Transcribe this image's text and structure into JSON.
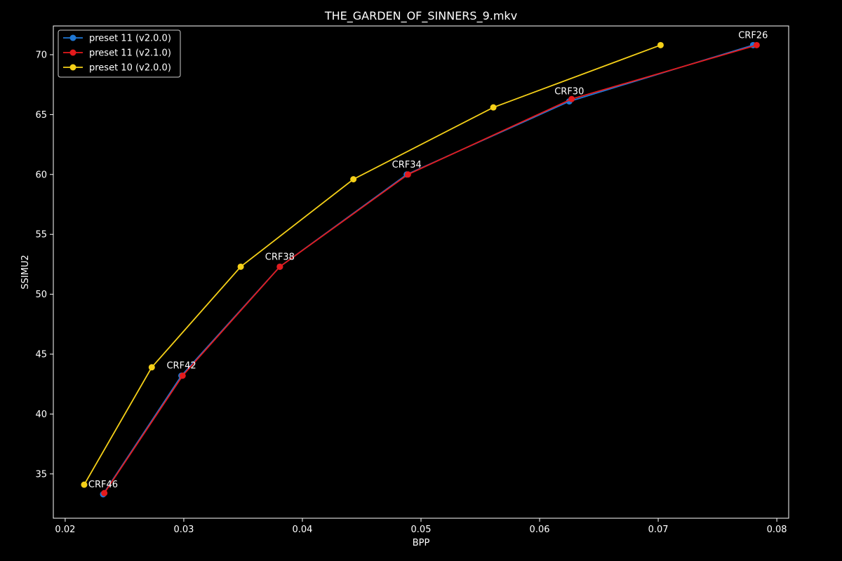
{
  "chart_data": {
    "type": "line",
    "title": "THE_GARDEN_OF_SINNERS_9.mkv",
    "xlabel": "BPP",
    "ylabel": "SSIMU2",
    "xlim": [
      0.019,
      0.081
    ],
    "ylim": [
      31.3,
      72.4
    ],
    "xticks": [
      {
        "value": 0.02,
        "label": "0.02"
      },
      {
        "value": 0.03,
        "label": "0.03"
      },
      {
        "value": 0.04,
        "label": "0.04"
      },
      {
        "value": 0.05,
        "label": "0.05"
      },
      {
        "value": 0.06,
        "label": "0.06"
      },
      {
        "value": 0.07,
        "label": "0.07"
      },
      {
        "value": 0.08,
        "label": "0.08"
      }
    ],
    "yticks": [
      {
        "value": 35,
        "label": "35"
      },
      {
        "value": 40,
        "label": "40"
      },
      {
        "value": 45,
        "label": "45"
      },
      {
        "value": 50,
        "label": "50"
      },
      {
        "value": 55,
        "label": "55"
      },
      {
        "value": 60,
        "label": "60"
      },
      {
        "value": 65,
        "label": "65"
      },
      {
        "value": 70,
        "label": "70"
      }
    ],
    "grid": false,
    "legend_position": "top-left",
    "background": "#000000",
    "foreground": "#ffffff",
    "series": [
      {
        "name": "preset 11 (v2.0.0)",
        "color": "#1f77d4",
        "points": [
          [
            0.0232,
            33.3
          ],
          [
            0.0298,
            43.2
          ],
          [
            0.0381,
            52.3
          ],
          [
            0.0488,
            60.0
          ],
          [
            0.0625,
            66.1
          ],
          [
            0.078,
            70.8
          ]
        ]
      },
      {
        "name": "preset 11 (v2.1.0)",
        "color": "#e41a1c",
        "points": [
          [
            0.0233,
            33.4
          ],
          [
            0.0299,
            43.2
          ],
          [
            0.0381,
            52.3
          ],
          [
            0.0489,
            60.0
          ],
          [
            0.0627,
            66.3
          ],
          [
            0.0783,
            70.8
          ]
        ]
      },
      {
        "name": "preset 10 (v2.0.0)",
        "color": "#f5d018",
        "points": [
          [
            0.0216,
            34.1
          ],
          [
            0.0273,
            43.9
          ],
          [
            0.0348,
            52.3
          ],
          [
            0.0443,
            59.6
          ],
          [
            0.0561,
            65.6
          ],
          [
            0.0702,
            70.8
          ]
        ]
      }
    ],
    "annotations": [
      {
        "text": "CRF46",
        "x": 0.0232,
        "y": 33.3
      },
      {
        "text": "CRF42",
        "x": 0.0298,
        "y": 43.2
      },
      {
        "text": "CRF38",
        "x": 0.0381,
        "y": 52.3
      },
      {
        "text": "CRF34",
        "x": 0.0488,
        "y": 60.0
      },
      {
        "text": "CRF30",
        "x": 0.0625,
        "y": 66.1
      },
      {
        "text": "CRF26",
        "x": 0.078,
        "y": 70.8
      }
    ]
  }
}
